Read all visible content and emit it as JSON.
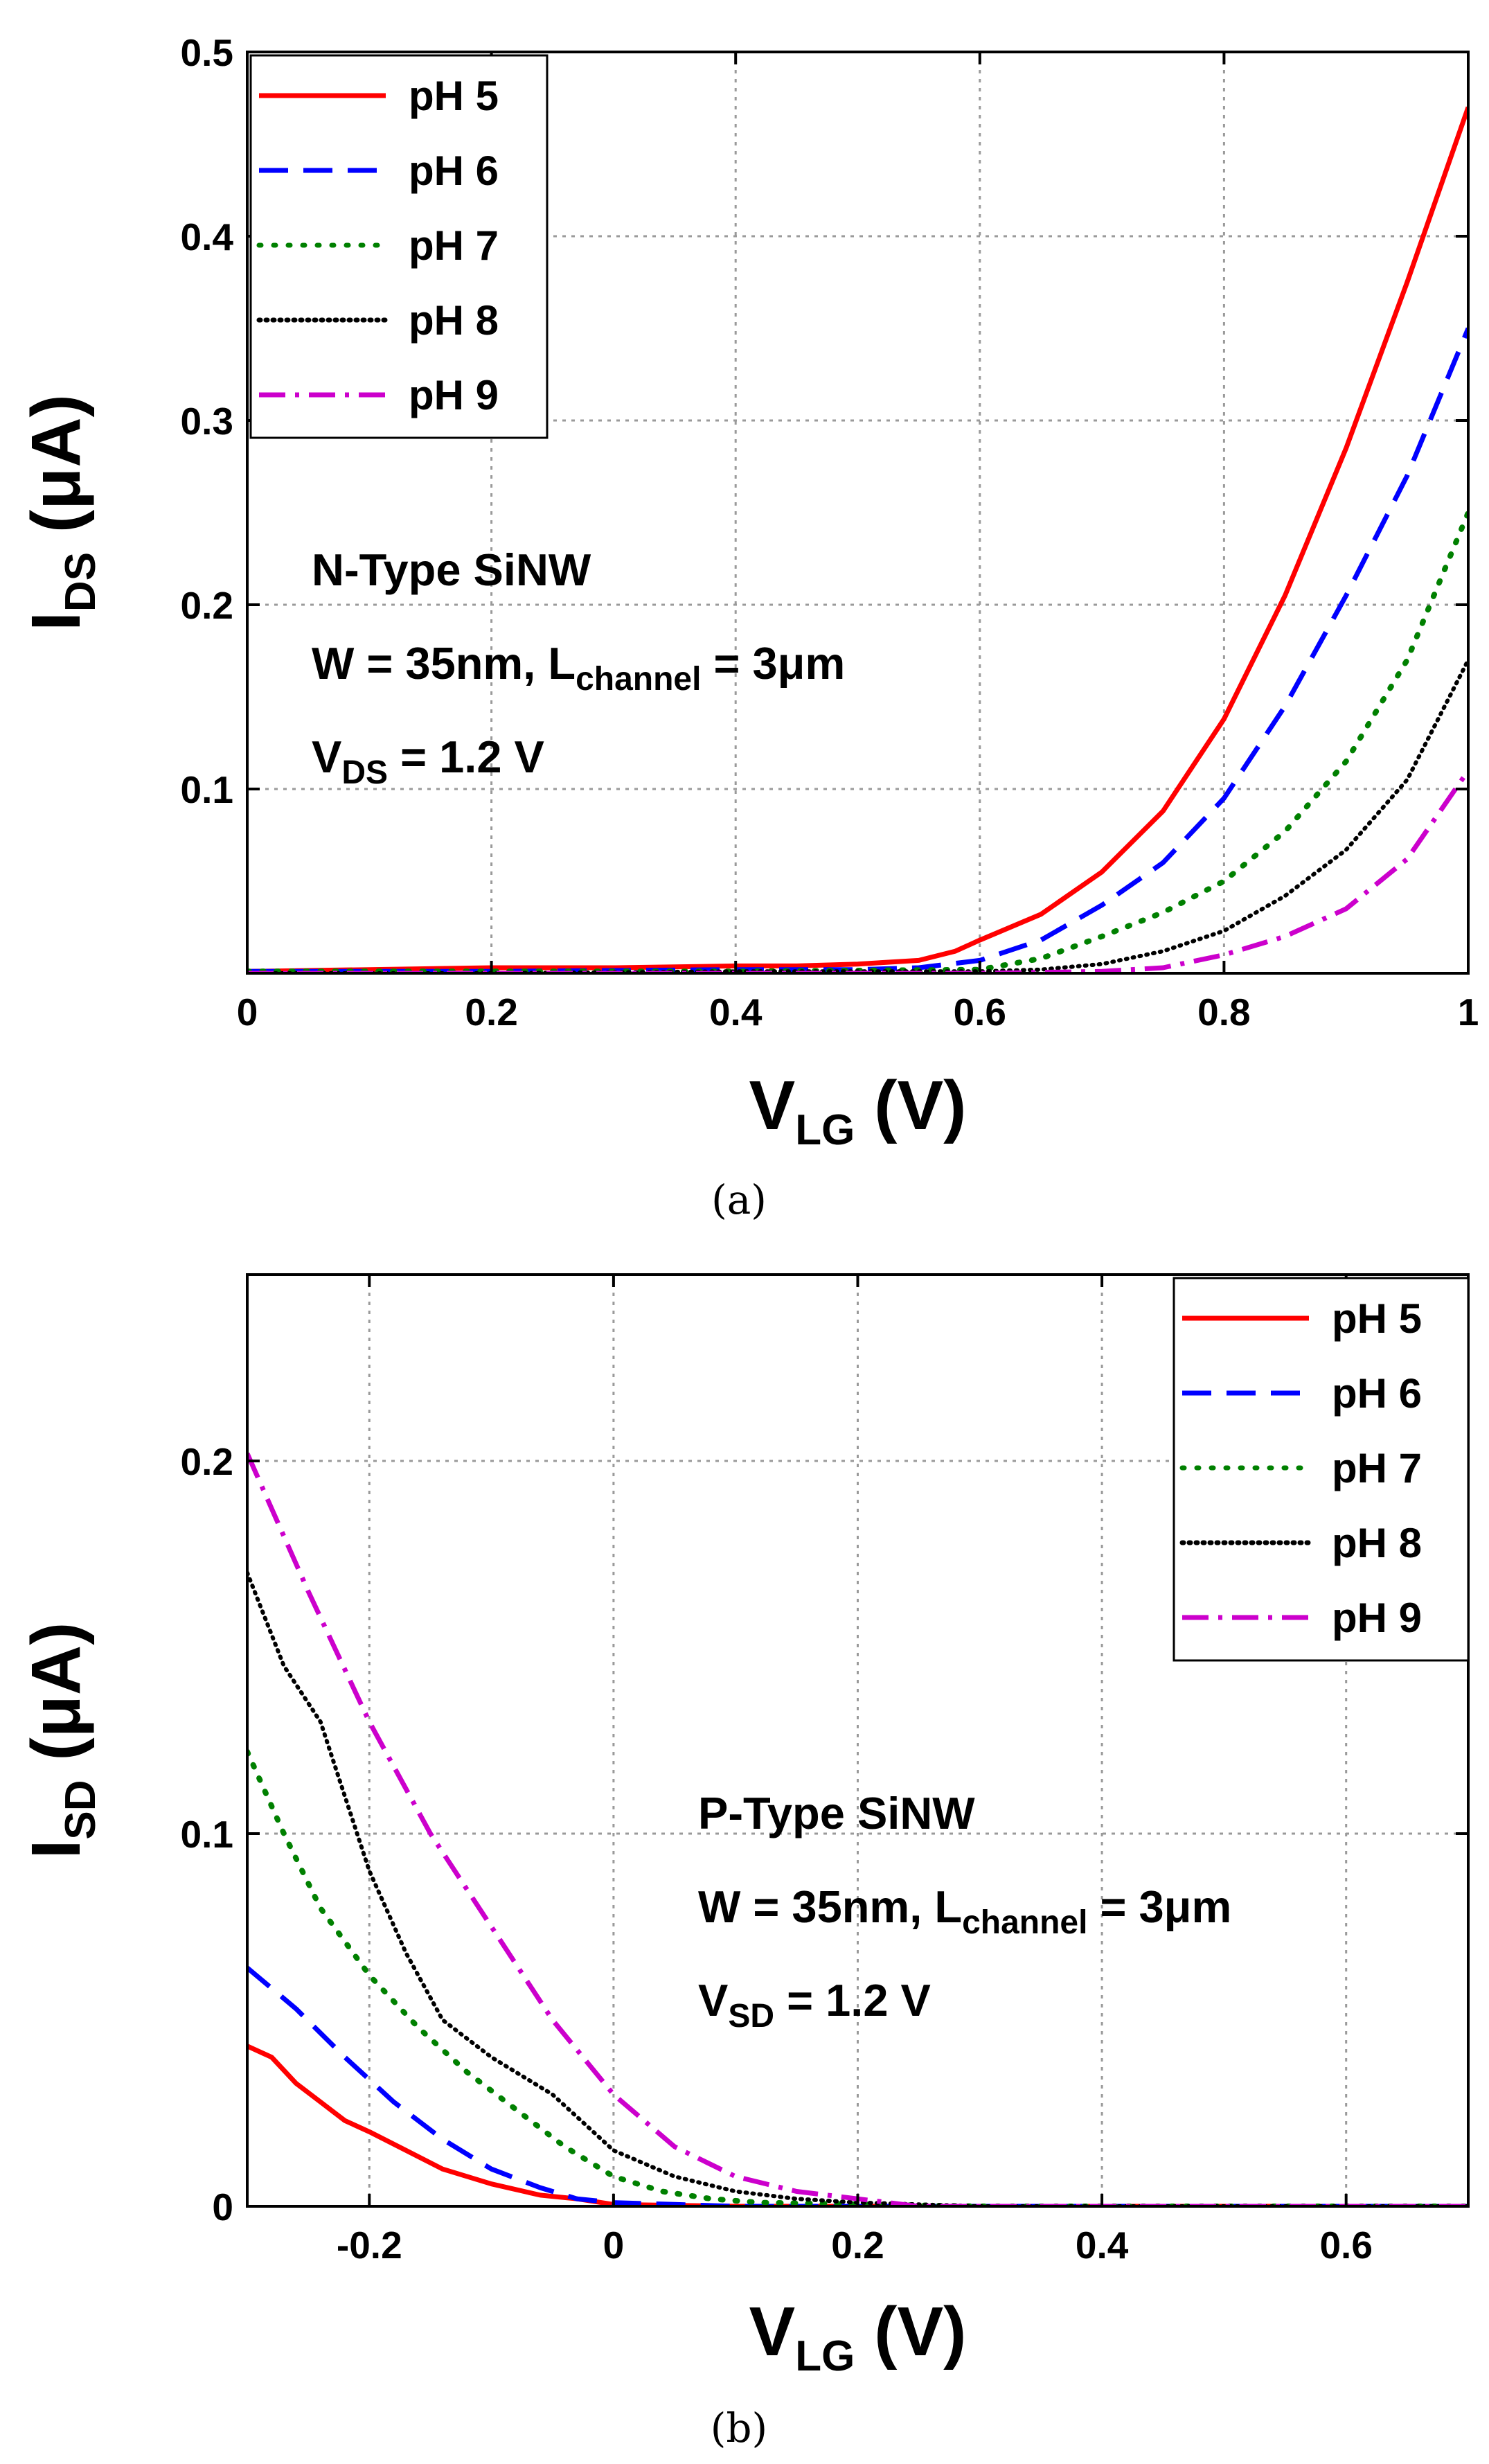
{
  "chart_data": [
    {
      "type": "line",
      "panel": "a",
      "caption": "(a)",
      "xlabel": {
        "main": "V",
        "sub": "LG",
        "unit": " (V)"
      },
      "ylabel": {
        "main": "I",
        "sub": "DS",
        "unit": " (μA)"
      },
      "xlim": [
        0,
        1
      ],
      "ylim": [
        0,
        0.5
      ],
      "xticks": [
        0,
        0.2,
        0.4,
        0.6,
        0.8,
        1
      ],
      "xtick_labels": [
        "0",
        "0.2",
        "0.4",
        "0.6",
        "0.8",
        "1"
      ],
      "yticks": [
        0.1,
        0.2,
        0.3,
        0.4,
        0.5
      ],
      "ytick_labels": [
        "0.1",
        "0.2",
        "0.3",
        "0.4",
        "0.5"
      ],
      "grid": true,
      "legend_position": "top-left",
      "annotations": [
        {
          "main": "N-Type SiNW",
          "sub": "",
          "tail": ""
        },
        {
          "main": "W = 35nm, L",
          "sub": "channel",
          "tail": " = 3μm"
        },
        {
          "main": "V",
          "sub": "DS",
          "tail": " = 1.2 V"
        }
      ],
      "series": [
        {
          "name": "pH 5",
          "color": "#ff0000",
          "dash": "solid",
          "x": [
            0,
            0.1,
            0.2,
            0.3,
            0.4,
            0.45,
            0.5,
            0.55,
            0.58,
            0.6,
            0.65,
            0.7,
            0.75,
            0.8,
            0.85,
            0.9,
            0.95,
            1.0
          ],
          "y": [
            0.001,
            0.002,
            0.003,
            0.003,
            0.004,
            0.004,
            0.005,
            0.007,
            0.012,
            0.018,
            0.032,
            0.055,
            0.088,
            0.138,
            0.205,
            0.285,
            0.375,
            0.47
          ]
        },
        {
          "name": "pH 6",
          "color": "#0000ff",
          "dash": "dashed",
          "x": [
            0,
            0.2,
            0.4,
            0.5,
            0.55,
            0.6,
            0.65,
            0.7,
            0.75,
            0.8,
            0.85,
            0.9,
            0.95,
            1.0
          ],
          "y": [
            0.001,
            0.001,
            0.002,
            0.002,
            0.003,
            0.007,
            0.018,
            0.037,
            0.06,
            0.095,
            0.145,
            0.205,
            0.27,
            0.35
          ]
        },
        {
          "name": "pH 7",
          "color": "#008000",
          "dash": "dotted",
          "x": [
            0,
            0.2,
            0.4,
            0.6,
            0.65,
            0.7,
            0.75,
            0.8,
            0.85,
            0.9,
            0.95,
            1.0
          ],
          "y": [
            0.001,
            0.001,
            0.001,
            0.002,
            0.008,
            0.02,
            0.033,
            0.05,
            0.077,
            0.115,
            0.17,
            0.25
          ]
        },
        {
          "name": "pH 8",
          "color": "#000000",
          "dash": "densedot",
          "x": [
            0,
            0.2,
            0.4,
            0.6,
            0.65,
            0.7,
            0.75,
            0.8,
            0.85,
            0.9,
            0.95,
            1.0
          ],
          "y": [
            0.0,
            0.0,
            0.001,
            0.001,
            0.002,
            0.005,
            0.012,
            0.023,
            0.042,
            0.067,
            0.105,
            0.17
          ]
        },
        {
          "name": "pH 9",
          "color": "#cc00cc",
          "dash": "dashdot",
          "x": [
            0,
            0.2,
            0.4,
            0.6,
            0.7,
            0.75,
            0.8,
            0.85,
            0.9,
            0.95,
            1.0
          ],
          "y": [
            0.0,
            0.0,
            0.0,
            0.0,
            0.001,
            0.003,
            0.01,
            0.02,
            0.035,
            0.062,
            0.11
          ]
        }
      ]
    },
    {
      "type": "line",
      "panel": "b",
      "caption": "(b)",
      "xlabel": {
        "main": "V",
        "sub": "LG",
        "unit": " (V)"
      },
      "ylabel": {
        "main": "I",
        "sub": "SD",
        "unit": " (μA)"
      },
      "xlim": [
        -0.3,
        0.7
      ],
      "ylim": [
        0,
        0.25
      ],
      "xticks": [
        -0.2,
        0,
        0.2,
        0.4,
        0.6
      ],
      "xtick_labels": [
        "-0.2",
        "0",
        "0.2",
        "0.4",
        "0.6"
      ],
      "yticks": [
        0,
        0.1,
        0.2
      ],
      "ytick_labels": [
        "0",
        "0.1",
        "0.2"
      ],
      "grid": true,
      "legend_position": "top-right",
      "annotations": [
        {
          "main": "P-Type SiNW",
          "sub": "",
          "tail": ""
        },
        {
          "main": "W = 35nm, L",
          "sub": "channel",
          "tail": " = 3μm"
        },
        {
          "main": "V",
          "sub": "SD",
          "tail": " = 1.2 V"
        }
      ],
      "series": [
        {
          "name": "pH 5",
          "color": "#ff0000",
          "dash": "solid",
          "x": [
            -0.3,
            -0.28,
            -0.26,
            -0.24,
            -0.22,
            -0.2,
            -0.17,
            -0.14,
            -0.1,
            -0.06,
            -0.03,
            0,
            0.1,
            0.3,
            0.7
          ],
          "y": [
            0.043,
            0.04,
            0.033,
            0.028,
            0.023,
            0.02,
            0.015,
            0.01,
            0.006,
            0.003,
            0.002,
            0.0005,
            0.0,
            0.0,
            0.0
          ]
        },
        {
          "name": "pH 6",
          "color": "#0000ff",
          "dash": "dashed",
          "x": [
            -0.3,
            -0.26,
            -0.22,
            -0.18,
            -0.14,
            -0.1,
            -0.06,
            -0.03,
            0,
            0.05,
            0.1,
            0.3,
            0.7
          ],
          "y": [
            0.064,
            0.053,
            0.04,
            0.028,
            0.018,
            0.01,
            0.005,
            0.002,
            0.001,
            0.0005,
            0.0,
            0.0,
            0.0
          ]
        },
        {
          "name": "pH 7",
          "color": "#008000",
          "dash": "dotted",
          "x": [
            -0.3,
            -0.27,
            -0.24,
            -0.2,
            -0.16,
            -0.12,
            -0.08,
            -0.04,
            0,
            0.04,
            0.08,
            0.12,
            0.3,
            0.7
          ],
          "y": [
            0.122,
            0.1,
            0.08,
            0.062,
            0.048,
            0.036,
            0.026,
            0.016,
            0.008,
            0.004,
            0.002,
            0.001,
            0.0,
            0.0
          ]
        },
        {
          "name": "pH 8",
          "color": "#000000",
          "dash": "densedot",
          "x": [
            -0.3,
            -0.27,
            -0.24,
            -0.22,
            -0.2,
            -0.17,
            -0.14,
            -0.1,
            -0.05,
            0,
            0.05,
            0.1,
            0.15,
            0.2,
            0.3,
            0.7
          ],
          "y": [
            0.17,
            0.145,
            0.13,
            0.11,
            0.09,
            0.068,
            0.05,
            0.04,
            0.03,
            0.015,
            0.008,
            0.004,
            0.002,
            0.001,
            0.0,
            0.0
          ]
        },
        {
          "name": "pH 9",
          "color": "#cc00cc",
          "dash": "dashdot",
          "x": [
            -0.3,
            -0.25,
            -0.2,
            -0.15,
            -0.1,
            -0.05,
            0,
            0.05,
            0.1,
            0.15,
            0.2,
            0.25,
            0.3,
            0.7
          ],
          "y": [
            0.202,
            0.165,
            0.13,
            0.1,
            0.075,
            0.05,
            0.03,
            0.016,
            0.008,
            0.004,
            0.002,
            0.0,
            0.0,
            0.0
          ]
        }
      ]
    }
  ]
}
